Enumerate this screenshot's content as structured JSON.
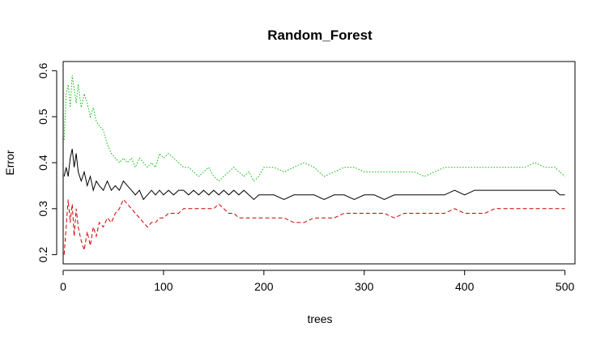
{
  "chart_data": {
    "type": "line",
    "title": "Random_Forest",
    "xlabel": "trees",
    "ylabel": "Error",
    "xlim": [
      0,
      510
    ],
    "ylim": [
      0.18,
      0.62
    ],
    "x_ticks": [
      0,
      100,
      200,
      300,
      400,
      500
    ],
    "y_ticks": [
      0.2,
      0.3,
      0.4,
      0.5,
      0.6
    ],
    "x_tick_labels": [
      "0",
      "100",
      "200",
      "300",
      "400",
      "500"
    ],
    "y_tick_labels": [
      "0.2",
      "0.3",
      "0.4",
      "0.5",
      "0.6"
    ],
    "grid": false,
    "legend": "none",
    "series": [
      {
        "color": "#000000",
        "linestyle": "solid",
        "points": [
          [
            1,
            0.37
          ],
          [
            3,
            0.39
          ],
          [
            5,
            0.37
          ],
          [
            7,
            0.41
          ],
          [
            9,
            0.43
          ],
          [
            11,
            0.39
          ],
          [
            13,
            0.42
          ],
          [
            15,
            0.38
          ],
          [
            18,
            0.36
          ],
          [
            21,
            0.38
          ],
          [
            24,
            0.35
          ],
          [
            27,
            0.37
          ],
          [
            30,
            0.34
          ],
          [
            33,
            0.36
          ],
          [
            36,
            0.35
          ],
          [
            40,
            0.34
          ],
          [
            44,
            0.36
          ],
          [
            48,
            0.34
          ],
          [
            52,
            0.35
          ],
          [
            56,
            0.34
          ],
          [
            60,
            0.36
          ],
          [
            64,
            0.35
          ],
          [
            68,
            0.34
          ],
          [
            72,
            0.33
          ],
          [
            76,
            0.34
          ],
          [
            80,
            0.32
          ],
          [
            84,
            0.33
          ],
          [
            88,
            0.34
          ],
          [
            92,
            0.33
          ],
          [
            96,
            0.34
          ],
          [
            100,
            0.33
          ],
          [
            105,
            0.34
          ],
          [
            110,
            0.33
          ],
          [
            115,
            0.34
          ],
          [
            120,
            0.34
          ],
          [
            125,
            0.33
          ],
          [
            130,
            0.34
          ],
          [
            135,
            0.33
          ],
          [
            140,
            0.34
          ],
          [
            145,
            0.33
          ],
          [
            150,
            0.34
          ],
          [
            155,
            0.33
          ],
          [
            160,
            0.34
          ],
          [
            165,
            0.33
          ],
          [
            170,
            0.34
          ],
          [
            175,
            0.33
          ],
          [
            180,
            0.34
          ],
          [
            185,
            0.33
          ],
          [
            190,
            0.32
          ],
          [
            195,
            0.33
          ],
          [
            200,
            0.33
          ],
          [
            210,
            0.33
          ],
          [
            220,
            0.32
          ],
          [
            230,
            0.33
          ],
          [
            240,
            0.33
          ],
          [
            250,
            0.33
          ],
          [
            260,
            0.32
          ],
          [
            270,
            0.33
          ],
          [
            280,
            0.33
          ],
          [
            290,
            0.32
          ],
          [
            300,
            0.33
          ],
          [
            310,
            0.33
          ],
          [
            320,
            0.32
          ],
          [
            330,
            0.33
          ],
          [
            340,
            0.33
          ],
          [
            350,
            0.33
          ],
          [
            360,
            0.33
          ],
          [
            370,
            0.33
          ],
          [
            380,
            0.33
          ],
          [
            390,
            0.34
          ],
          [
            400,
            0.33
          ],
          [
            410,
            0.34
          ],
          [
            420,
            0.34
          ],
          [
            430,
            0.34
          ],
          [
            440,
            0.34
          ],
          [
            450,
            0.34
          ],
          [
            460,
            0.34
          ],
          [
            470,
            0.34
          ],
          [
            480,
            0.34
          ],
          [
            490,
            0.34
          ],
          [
            495,
            0.33
          ],
          [
            500,
            0.33
          ]
        ]
      },
      {
        "color": "#cc0000",
        "linestyle": "dashed",
        "points": [
          [
            1,
            0.2
          ],
          [
            3,
            0.26
          ],
          [
            5,
            0.32
          ],
          [
            7,
            0.27
          ],
          [
            9,
            0.31
          ],
          [
            11,
            0.24
          ],
          [
            13,
            0.3
          ],
          [
            15,
            0.26
          ],
          [
            18,
            0.23
          ],
          [
            21,
            0.21
          ],
          [
            24,
            0.25
          ],
          [
            27,
            0.22
          ],
          [
            30,
            0.26
          ],
          [
            33,
            0.24
          ],
          [
            36,
            0.27
          ],
          [
            40,
            0.26
          ],
          [
            44,
            0.28
          ],
          [
            48,
            0.27
          ],
          [
            52,
            0.29
          ],
          [
            56,
            0.3
          ],
          [
            60,
            0.32
          ],
          [
            64,
            0.31
          ],
          [
            68,
            0.3
          ],
          [
            72,
            0.29
          ],
          [
            76,
            0.28
          ],
          [
            80,
            0.27
          ],
          [
            84,
            0.26
          ],
          [
            88,
            0.27
          ],
          [
            92,
            0.27
          ],
          [
            96,
            0.28
          ],
          [
            100,
            0.28
          ],
          [
            105,
            0.29
          ],
          [
            110,
            0.29
          ],
          [
            115,
            0.29
          ],
          [
            120,
            0.3
          ],
          [
            125,
            0.3
          ],
          [
            130,
            0.3
          ],
          [
            135,
            0.3
          ],
          [
            140,
            0.3
          ],
          [
            145,
            0.3
          ],
          [
            150,
            0.3
          ],
          [
            155,
            0.31
          ],
          [
            160,
            0.3
          ],
          [
            165,
            0.29
          ],
          [
            170,
            0.29
          ],
          [
            175,
            0.28
          ],
          [
            180,
            0.28
          ],
          [
            185,
            0.28
          ],
          [
            190,
            0.28
          ],
          [
            195,
            0.28
          ],
          [
            200,
            0.28
          ],
          [
            210,
            0.28
          ],
          [
            220,
            0.28
          ],
          [
            230,
            0.27
          ],
          [
            240,
            0.27
          ],
          [
            250,
            0.28
          ],
          [
            260,
            0.28
          ],
          [
            270,
            0.28
          ],
          [
            280,
            0.29
          ],
          [
            290,
            0.29
          ],
          [
            300,
            0.29
          ],
          [
            310,
            0.29
          ],
          [
            320,
            0.29
          ],
          [
            330,
            0.28
          ],
          [
            340,
            0.29
          ],
          [
            350,
            0.29
          ],
          [
            360,
            0.29
          ],
          [
            370,
            0.29
          ],
          [
            380,
            0.29
          ],
          [
            390,
            0.3
          ],
          [
            400,
            0.29
          ],
          [
            410,
            0.29
          ],
          [
            420,
            0.29
          ],
          [
            430,
            0.3
          ],
          [
            440,
            0.3
          ],
          [
            450,
            0.3
          ],
          [
            460,
            0.3
          ],
          [
            470,
            0.3
          ],
          [
            480,
            0.3
          ],
          [
            490,
            0.3
          ],
          [
            500,
            0.3
          ]
        ]
      },
      {
        "color": "#00bb00",
        "linestyle": "dotted",
        "points": [
          [
            1,
            0.45
          ],
          [
            3,
            0.55
          ],
          [
            5,
            0.57
          ],
          [
            7,
            0.52
          ],
          [
            9,
            0.59
          ],
          [
            11,
            0.56
          ],
          [
            13,
            0.53
          ],
          [
            15,
            0.57
          ],
          [
            18,
            0.52
          ],
          [
            21,
            0.55
          ],
          [
            24,
            0.53
          ],
          [
            27,
            0.5
          ],
          [
            30,
            0.52
          ],
          [
            33,
            0.49
          ],
          [
            36,
            0.48
          ],
          [
            40,
            0.47
          ],
          [
            44,
            0.44
          ],
          [
            48,
            0.42
          ],
          [
            52,
            0.41
          ],
          [
            56,
            0.4
          ],
          [
            60,
            0.41
          ],
          [
            64,
            0.4
          ],
          [
            68,
            0.41
          ],
          [
            72,
            0.39
          ],
          [
            76,
            0.41
          ],
          [
            80,
            0.4
          ],
          [
            84,
            0.39
          ],
          [
            88,
            0.4
          ],
          [
            92,
            0.39
          ],
          [
            96,
            0.42
          ],
          [
            100,
            0.41
          ],
          [
            105,
            0.42
          ],
          [
            110,
            0.41
          ],
          [
            115,
            0.4
          ],
          [
            120,
            0.39
          ],
          [
            125,
            0.39
          ],
          [
            130,
            0.38
          ],
          [
            135,
            0.37
          ],
          [
            140,
            0.38
          ],
          [
            145,
            0.39
          ],
          [
            150,
            0.37
          ],
          [
            155,
            0.36
          ],
          [
            160,
            0.37
          ],
          [
            165,
            0.38
          ],
          [
            170,
            0.39
          ],
          [
            175,
            0.38
          ],
          [
            180,
            0.37
          ],
          [
            185,
            0.38
          ],
          [
            190,
            0.36
          ],
          [
            195,
            0.37
          ],
          [
            200,
            0.39
          ],
          [
            210,
            0.39
          ],
          [
            220,
            0.38
          ],
          [
            230,
            0.39
          ],
          [
            240,
            0.4
          ],
          [
            250,
            0.39
          ],
          [
            260,
            0.37
          ],
          [
            270,
            0.38
          ],
          [
            280,
            0.39
          ],
          [
            290,
            0.39
          ],
          [
            300,
            0.38
          ],
          [
            310,
            0.38
          ],
          [
            320,
            0.38
          ],
          [
            330,
            0.38
          ],
          [
            340,
            0.38
          ],
          [
            350,
            0.38
          ],
          [
            360,
            0.37
          ],
          [
            370,
            0.38
          ],
          [
            380,
            0.39
          ],
          [
            390,
            0.39
          ],
          [
            400,
            0.39
          ],
          [
            410,
            0.39
          ],
          [
            420,
            0.39
          ],
          [
            430,
            0.39
          ],
          [
            440,
            0.39
          ],
          [
            450,
            0.39
          ],
          [
            460,
            0.39
          ],
          [
            470,
            0.4
          ],
          [
            480,
            0.39
          ],
          [
            490,
            0.39
          ],
          [
            495,
            0.38
          ],
          [
            500,
            0.37
          ]
        ]
      }
    ]
  }
}
